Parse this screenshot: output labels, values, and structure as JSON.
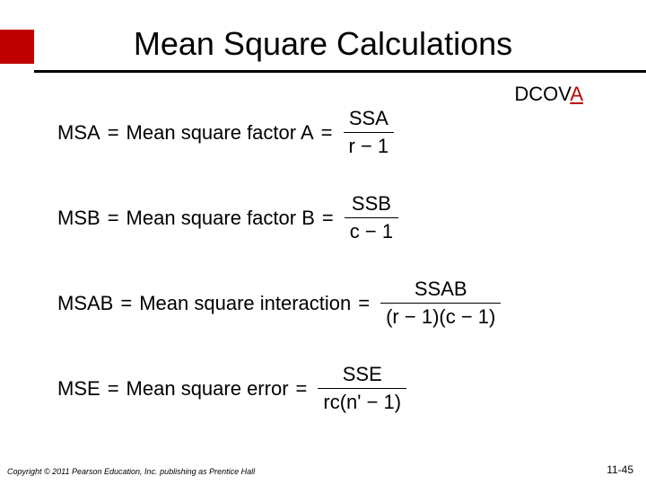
{
  "accent_color": "#c00000",
  "title": "Mean Square Calculations",
  "tag_prefix": "DCOV",
  "tag_highlight": "A",
  "equations": [
    {
      "lhs": "MSA",
      "desc": "Mean square factor A",
      "num": "SSA",
      "den": "r − 1"
    },
    {
      "lhs": "MSB",
      "desc": "Mean square factor B",
      "num": "SSB",
      "den": "c − 1"
    },
    {
      "lhs": "MSAB",
      "desc": "Mean square interaction",
      "num": "SSAB",
      "den": "(r − 1)(c − 1)"
    },
    {
      "lhs": "MSE",
      "desc": "Mean square error",
      "num": "SSE",
      "den": "rc(n' − 1)"
    }
  ],
  "copyright": "Copyright © 2011 Pearson Education, Inc. publishing as Prentice Hall",
  "page_number": "11-45"
}
